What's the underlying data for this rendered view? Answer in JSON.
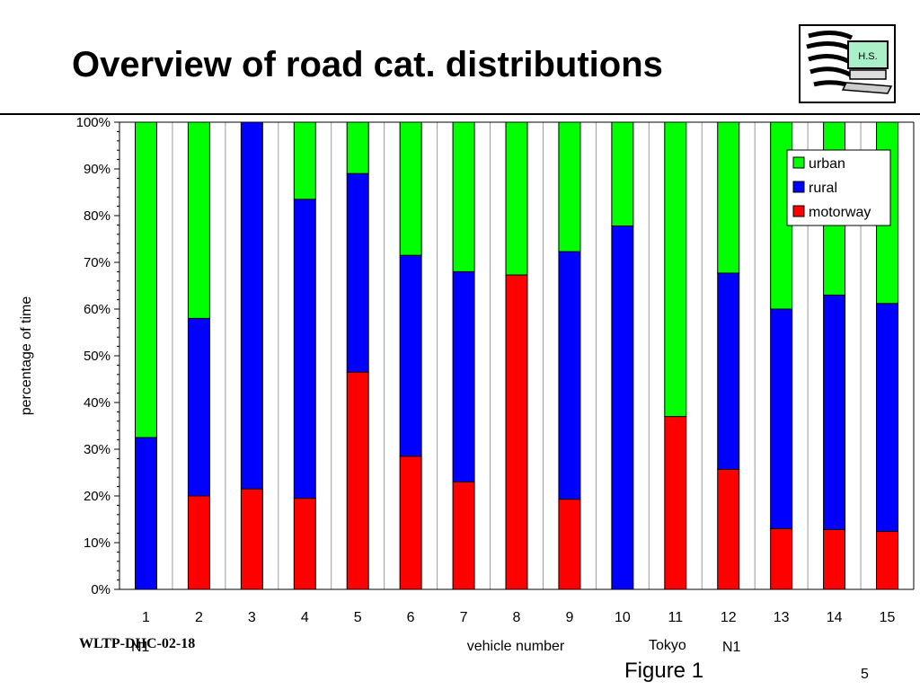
{
  "slide": {
    "title": "Overview of road cat. distributions",
    "logo_text": "H.S.",
    "footer_id": "WLTP-DHC-02-18",
    "footer_n1_left": "N1",
    "footer_tokyo": "Tokyo",
    "footer_n1_right": "N1",
    "figure_label": "Figure 1",
    "page_number": "5"
  },
  "chart_data": {
    "type": "bar",
    "stacked": true,
    "percent": true,
    "categories": [
      "1",
      "2",
      "3",
      "4",
      "5",
      "6",
      "7",
      "8",
      "9",
      "10",
      "11",
      "12",
      "13",
      "14",
      "15"
    ],
    "series": [
      {
        "name": "motorway",
        "color": "#ff0000",
        "values": [
          0,
          20,
          21.5,
          19.5,
          46.5,
          28.5,
          23,
          67.3,
          19.3,
          0,
          37,
          25.7,
          13,
          12.8,
          12.4
        ]
      },
      {
        "name": "rural",
        "color": "#0000ff",
        "values": [
          32.5,
          38,
          78.5,
          64,
          42.5,
          43,
          45,
          0,
          53,
          77.8,
          0,
          42,
          47,
          50.2,
          48.8
        ]
      },
      {
        "name": "urban",
        "color": "#00ff00",
        "values": [
          67.5,
          42,
          0,
          16.5,
          11,
          28.5,
          32,
          32.7,
          27.7,
          22.2,
          63,
          32.3,
          40,
          37,
          38.8
        ]
      }
    ],
    "legend_order": [
      "urban",
      "rural",
      "motorway"
    ],
    "legend_position": "top-right",
    "xlabel": "vehicle number",
    "ylabel": "percentage of time",
    "ylim": [
      0,
      100
    ],
    "ytick_labels": [
      "0%",
      "10%",
      "20%",
      "30%",
      "40%",
      "50%",
      "60%",
      "70%",
      "80%",
      "90%",
      "100%"
    ],
    "grid": "vertical"
  }
}
